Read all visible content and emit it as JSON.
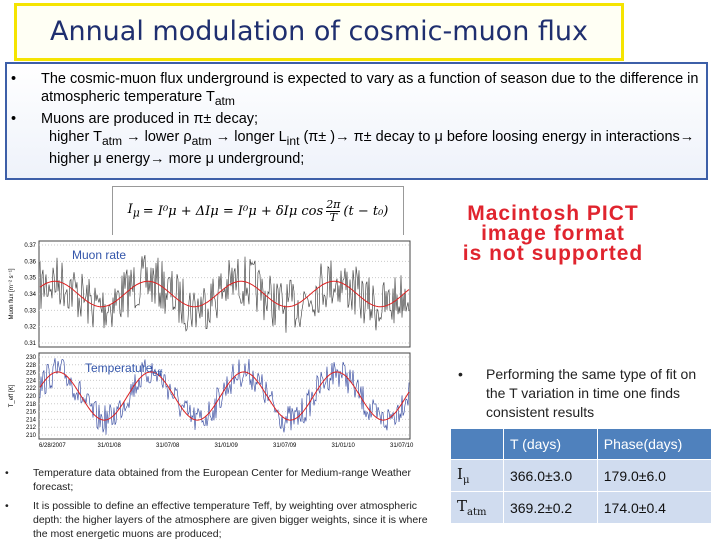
{
  "header": {
    "title": "Annual modulation of cosmic-muon flux"
  },
  "intro": {
    "bullets": [
      [
        {
          "t": "The cosmic-muon flux underground  is expected to vary as a function of season due to the difference in atmospheric  temperature T"
        },
        {
          "sub": "atm"
        }
      ],
      [
        {
          "t": "Muons are produced in π± decay;"
        }
      ]
    ],
    "continuation": [
      {
        "t": "higher T"
      },
      {
        "sub": "atm"
      },
      {
        "t": " → lower ρ"
      },
      {
        "sub": "atm"
      },
      {
        "t": " → longer L"
      },
      {
        "sub": "int"
      },
      {
        "t": " (π± )→ π± decay to μ before loosing energy in interactions→ higher μ energy→ more μ underground;"
      }
    ]
  },
  "formula": {
    "lhs": "I",
    "lhs_sub": "μ",
    "rest": "= I⁰μ + ΔIμ = I⁰μ + δIμ cos",
    "frac_num": "2π",
    "frac_den": "T",
    "arg": "(t − t₀)"
  },
  "missing_image": {
    "lines": [
      "Macintosh PICT",
      "image format",
      "is not supported"
    ]
  },
  "plot": {
    "muon_label": "Muon rate",
    "temp_label": "Temperature",
    "temp_label_sub": "eff",
    "muon_axis_title": "Muon flux [m⁻² s⁻¹]",
    "temp_axis_title": "T_eff [K]",
    "muon_ticks": [
      "0.37",
      "0.36",
      "0.35",
      "0.34",
      "0.33",
      "0.32",
      "0.31"
    ],
    "temp_ticks": [
      "230",
      "228",
      "226",
      "224",
      "222",
      "220",
      "218",
      "216",
      "214",
      "212",
      "210"
    ],
    "dates": [
      "6/28/2007",
      "31/01/08",
      "31/07/08",
      "31/01/09",
      "31/07/09",
      "31/01/10",
      "31/07/10"
    ]
  },
  "fit_note": {
    "text": "Performing the same type of fit on the T variation in time one finds consistent results"
  },
  "table": {
    "header": [
      "T (days)",
      "Phase(days)"
    ],
    "rows": [
      {
        "label": "I",
        "label_sub": "μ",
        "cells": [
          "366.0±3.0",
          "179.0±6.0"
        ]
      },
      {
        "label": "T",
        "label_sub": "atm",
        "cells": [
          "369.2±0.2",
          "174.0±0.4"
        ]
      }
    ]
  },
  "notes": {
    "bullets": [
      "Temperature data obtained from the European Center for Medium-range Weather forecast;",
      "It is possible to define an effective temperature Teff, by weighting over atmospheric depth: the higher layers of the atmosphere are given  bigger weights, since it is where the most energetic muons are produced;"
    ]
  }
}
